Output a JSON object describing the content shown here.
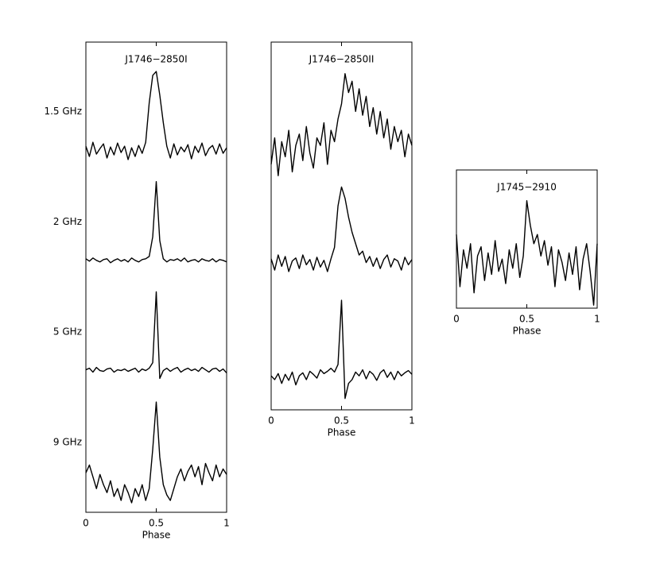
{
  "chart_data": [
    {
      "type": "line",
      "title": "J1746−2850I",
      "xlabel": "Phase",
      "xlim": [
        0,
        1
      ],
      "xticks": [
        0,
        0.5,
        1
      ],
      "ylim": [
        -0.35,
        1.05
      ],
      "color": "#000000",
      "x": [
        0,
        0.025,
        0.05,
        0.075,
        0.1,
        0.125,
        0.15,
        0.175,
        0.2,
        0.225,
        0.25,
        0.275,
        0.3,
        0.325,
        0.35,
        0.375,
        0.4,
        0.425,
        0.45,
        0.475,
        0.5,
        0.525,
        0.55,
        0.575,
        0.6,
        0.625,
        0.65,
        0.675,
        0.7,
        0.725,
        0.75,
        0.775,
        0.8,
        0.825,
        0.85,
        0.875,
        0.9,
        0.925,
        0.95,
        0.975,
        1
      ],
      "series": [
        {
          "name": "1.5 GHz",
          "values": [
            0.05,
            -0.08,
            0.1,
            -0.05,
            0.02,
            0.08,
            -0.1,
            0.04,
            -0.06,
            0.09,
            -0.03,
            0.05,
            -0.12,
            0.03,
            -0.08,
            0.06,
            -0.04,
            0.1,
            0.6,
            0.95,
            1.0,
            0.7,
            0.35,
            0.05,
            -0.1,
            0.08,
            -0.06,
            0.04,
            -0.02,
            0.07,
            -0.11,
            0.05,
            -0.03,
            0.09,
            -0.07,
            0.02,
            0.06,
            -0.05,
            0.08,
            -0.04,
            0.03
          ]
        },
        {
          "name": "2 GHz",
          "values": [
            0.02,
            -0.01,
            0.03,
            0.0,
            -0.02,
            0.01,
            0.02,
            -0.03,
            0.0,
            0.02,
            -0.01,
            0.01,
            -0.02,
            0.03,
            0.0,
            -0.02,
            0.01,
            0.02,
            0.05,
            0.3,
            1.0,
            0.25,
            0.02,
            -0.02,
            0.01,
            0.0,
            0.02,
            -0.01,
            0.03,
            -0.02,
            0.0,
            0.01,
            -0.02,
            0.02,
            0.0,
            -0.01,
            0.02,
            -0.02,
            0.01,
            0.0,
            -0.02
          ]
        },
        {
          "name": "5 GHz",
          "values": [
            0.01,
            0.03,
            -0.02,
            0.04,
            0.0,
            -0.01,
            0.02,
            0.03,
            -0.02,
            0.01,
            0.0,
            0.02,
            -0.01,
            0.01,
            0.03,
            -0.02,
            0.02,
            0.0,
            0.03,
            0.1,
            1.0,
            -0.1,
            0.0,
            0.03,
            -0.01,
            0.02,
            0.04,
            -0.02,
            0.01,
            0.03,
            0.0,
            0.02,
            -0.01,
            0.04,
            0.01,
            -0.02,
            0.02,
            0.03,
            -0.01,
            0.02,
            -0.03
          ]
        },
        {
          "name": "9 GHz",
          "values": [
            0.1,
            0.2,
            0.05,
            -0.1,
            0.08,
            -0.05,
            -0.15,
            0.0,
            -0.2,
            -0.1,
            -0.25,
            -0.05,
            -0.15,
            -0.28,
            -0.1,
            -0.2,
            -0.05,
            -0.25,
            -0.1,
            0.4,
            1.0,
            0.3,
            -0.05,
            -0.18,
            -0.25,
            -0.1,
            0.05,
            0.15,
            0.0,
            0.12,
            0.2,
            0.05,
            0.18,
            -0.05,
            0.22,
            0.1,
            0.0,
            0.2,
            0.05,
            0.15,
            0.08
          ]
        }
      ]
    },
    {
      "type": "line",
      "title": "J1746−2850II",
      "xlabel": "Phase",
      "xlim": [
        0,
        1
      ],
      "xticks": [
        0,
        0.5,
        1
      ],
      "ylim": [
        -0.45,
        1.05
      ],
      "color": "#000000",
      "x": [
        0,
        0.025,
        0.05,
        0.075,
        0.1,
        0.125,
        0.15,
        0.175,
        0.2,
        0.225,
        0.25,
        0.275,
        0.3,
        0.325,
        0.35,
        0.375,
        0.4,
        0.425,
        0.45,
        0.475,
        0.5,
        0.525,
        0.55,
        0.575,
        0.6,
        0.625,
        0.65,
        0.675,
        0.7,
        0.725,
        0.75,
        0.775,
        0.8,
        0.825,
        0.85,
        0.875,
        0.9,
        0.925,
        0.95,
        0.975,
        1
      ],
      "series": [
        {
          "values": [
            -0.2,
            0.15,
            -0.35,
            0.1,
            -0.1,
            0.25,
            -0.3,
            0.05,
            0.2,
            -0.15,
            0.3,
            -0.05,
            -0.25,
            0.15,
            0.05,
            0.35,
            -0.2,
            0.25,
            0.1,
            0.4,
            0.6,
            1.0,
            0.75,
            0.9,
            0.5,
            0.8,
            0.45,
            0.7,
            0.3,
            0.55,
            0.2,
            0.5,
            0.15,
            0.4,
            0.0,
            0.3,
            0.1,
            0.25,
            -0.1,
            0.2,
            0.05
          ]
        },
        {
          "values": [
            0.05,
            -0.1,
            0.1,
            -0.05,
            0.08,
            -0.12,
            0.02,
            0.06,
            -0.08,
            0.1,
            -0.03,
            0.04,
            -0.1,
            0.07,
            -0.06,
            0.03,
            -0.12,
            0.05,
            0.2,
            0.75,
            1.0,
            0.85,
            0.6,
            0.4,
            0.25,
            0.1,
            0.15,
            0.0,
            0.08,
            -0.05,
            0.06,
            -0.08,
            0.04,
            0.1,
            -0.06,
            0.05,
            0.02,
            -0.1,
            0.07,
            -0.03,
            0.04
          ]
        },
        {
          "values": [
            0.0,
            -0.05,
            0.03,
            -0.1,
            0.02,
            -0.06,
            0.05,
            -0.12,
            0.0,
            0.04,
            -0.05,
            0.06,
            0.02,
            -0.03,
            0.08,
            0.03,
            0.06,
            0.1,
            0.05,
            0.15,
            1.0,
            -0.3,
            -0.1,
            -0.05,
            0.05,
            0.0,
            0.08,
            -0.04,
            0.06,
            0.02,
            -0.06,
            0.04,
            0.08,
            -0.02,
            0.05,
            -0.05,
            0.06,
            0.0,
            0.04,
            0.07,
            0.02
          ]
        }
      ]
    },
    {
      "type": "line",
      "title": "J1745−2910",
      "xlabel": "Phase",
      "xlim": [
        0,
        1
      ],
      "xticks": [
        0,
        0.5,
        1
      ],
      "ylim": [
        -0.75,
        1.1
      ],
      "color": "#000000",
      "x": [
        0,
        0.025,
        0.05,
        0.075,
        0.1,
        0.125,
        0.15,
        0.175,
        0.2,
        0.225,
        0.25,
        0.275,
        0.3,
        0.325,
        0.35,
        0.375,
        0.4,
        0.425,
        0.45,
        0.475,
        0.5,
        0.525,
        0.55,
        0.575,
        0.6,
        0.625,
        0.65,
        0.675,
        0.7,
        0.725,
        0.75,
        0.775,
        0.8,
        0.825,
        0.85,
        0.875,
        0.9,
        0.925,
        0.95,
        0.975,
        1
      ],
      "series": [
        {
          "values": [
            0.45,
            -0.4,
            0.2,
            -0.1,
            0.3,
            -0.5,
            0.1,
            0.25,
            -0.3,
            0.15,
            -0.2,
            0.35,
            -0.15,
            0.05,
            -0.35,
            0.2,
            -0.1,
            0.3,
            -0.25,
            0.1,
            1.0,
            0.6,
            0.3,
            0.45,
            0.1,
            0.35,
            -0.05,
            0.25,
            -0.4,
            0.2,
            0.0,
            -0.3,
            0.15,
            -0.2,
            0.25,
            -0.45,
            0.05,
            0.3,
            -0.15,
            -0.7,
            0.3
          ]
        }
      ]
    }
  ]
}
